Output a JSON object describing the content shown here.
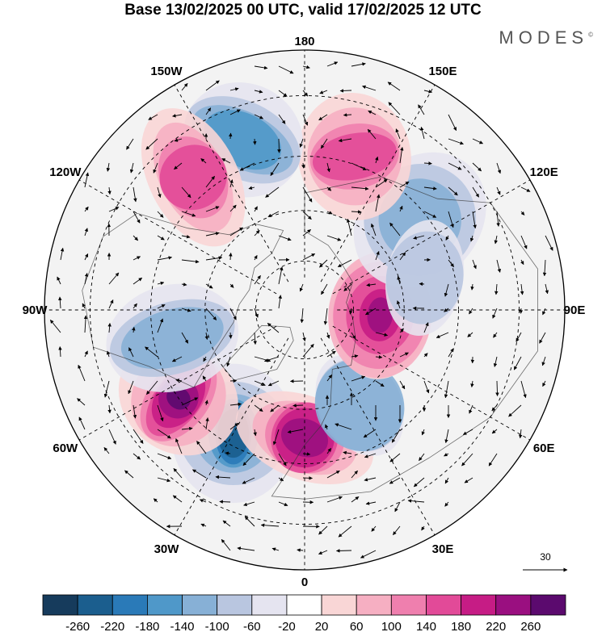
{
  "title": "Base 13/02/2025 00 UTC, valid 17/02/2025 12 UTC",
  "brand": "MODES",
  "brand_mark": "©",
  "map": {
    "projection": "north-polar-stereographic",
    "longitude_labels": [
      {
        "text": "180",
        "lon": 180
      },
      {
        "text": "150E",
        "lon": 150
      },
      {
        "text": "120E",
        "lon": 120
      },
      {
        "text": "90E",
        "lon": 90
      },
      {
        "text": "60E",
        "lon": 60
      },
      {
        "text": "30E",
        "lon": 30
      },
      {
        "text": "0",
        "lon": 0
      },
      {
        "text": "30W",
        "lon": -30
      },
      {
        "text": "60W",
        "lon": -60
      },
      {
        "text": "90W",
        "lon": -90
      },
      {
        "text": "120W",
        "lon": -120
      },
      {
        "text": "150W",
        "lon": -150
      }
    ],
    "reference_vector": {
      "value": "30"
    },
    "anomalies": [
      {
        "lon": -30,
        "lat": 48,
        "sign": "neg",
        "level": 6
      },
      {
        "lon": -55,
        "lat": 45,
        "sign": "pos",
        "level": 7
      },
      {
        "lon": -78,
        "lat": 50,
        "sign": "neg",
        "level": 3
      },
      {
        "lon": 0,
        "lat": 52,
        "sign": "pos",
        "level": 6
      },
      {
        "lon": 30,
        "lat": 57,
        "sign": "neg",
        "level": 3
      },
      {
        "lon": 86,
        "lat": 67,
        "sign": "pos",
        "level": 6
      },
      {
        "lon": 128,
        "lat": 47,
        "sign": "neg",
        "level": 3
      },
      {
        "lon": 162,
        "lat": 43,
        "sign": "pos",
        "level": 4
      },
      {
        "lon": -160,
        "lat": 38,
        "sign": "neg",
        "level": 4
      },
      {
        "lon": -140,
        "lat": 40,
        "sign": "pos",
        "level": 4
      },
      {
        "lon": 105,
        "lat": 53,
        "sign": "neg",
        "level": 2
      }
    ]
  },
  "colorbar": {
    "labels": [
      "-260",
      "-220",
      "-180",
      "-140",
      "-100",
      "-60",
      "-20",
      "20",
      "60",
      "100",
      "140",
      "180",
      "220",
      "260"
    ],
    "colors": [
      "#163b5c",
      "#1b5e8e",
      "#2a7ab8",
      "#4f98c9",
      "#87b0d6",
      "#b9c6e0",
      "#e5e4f0",
      "#ffffff",
      "#f9d6d6",
      "#f6afc2",
      "#ef7fae",
      "#e24a98",
      "#c61c85",
      "#9a0f80",
      "#5b0a6e"
    ]
  }
}
